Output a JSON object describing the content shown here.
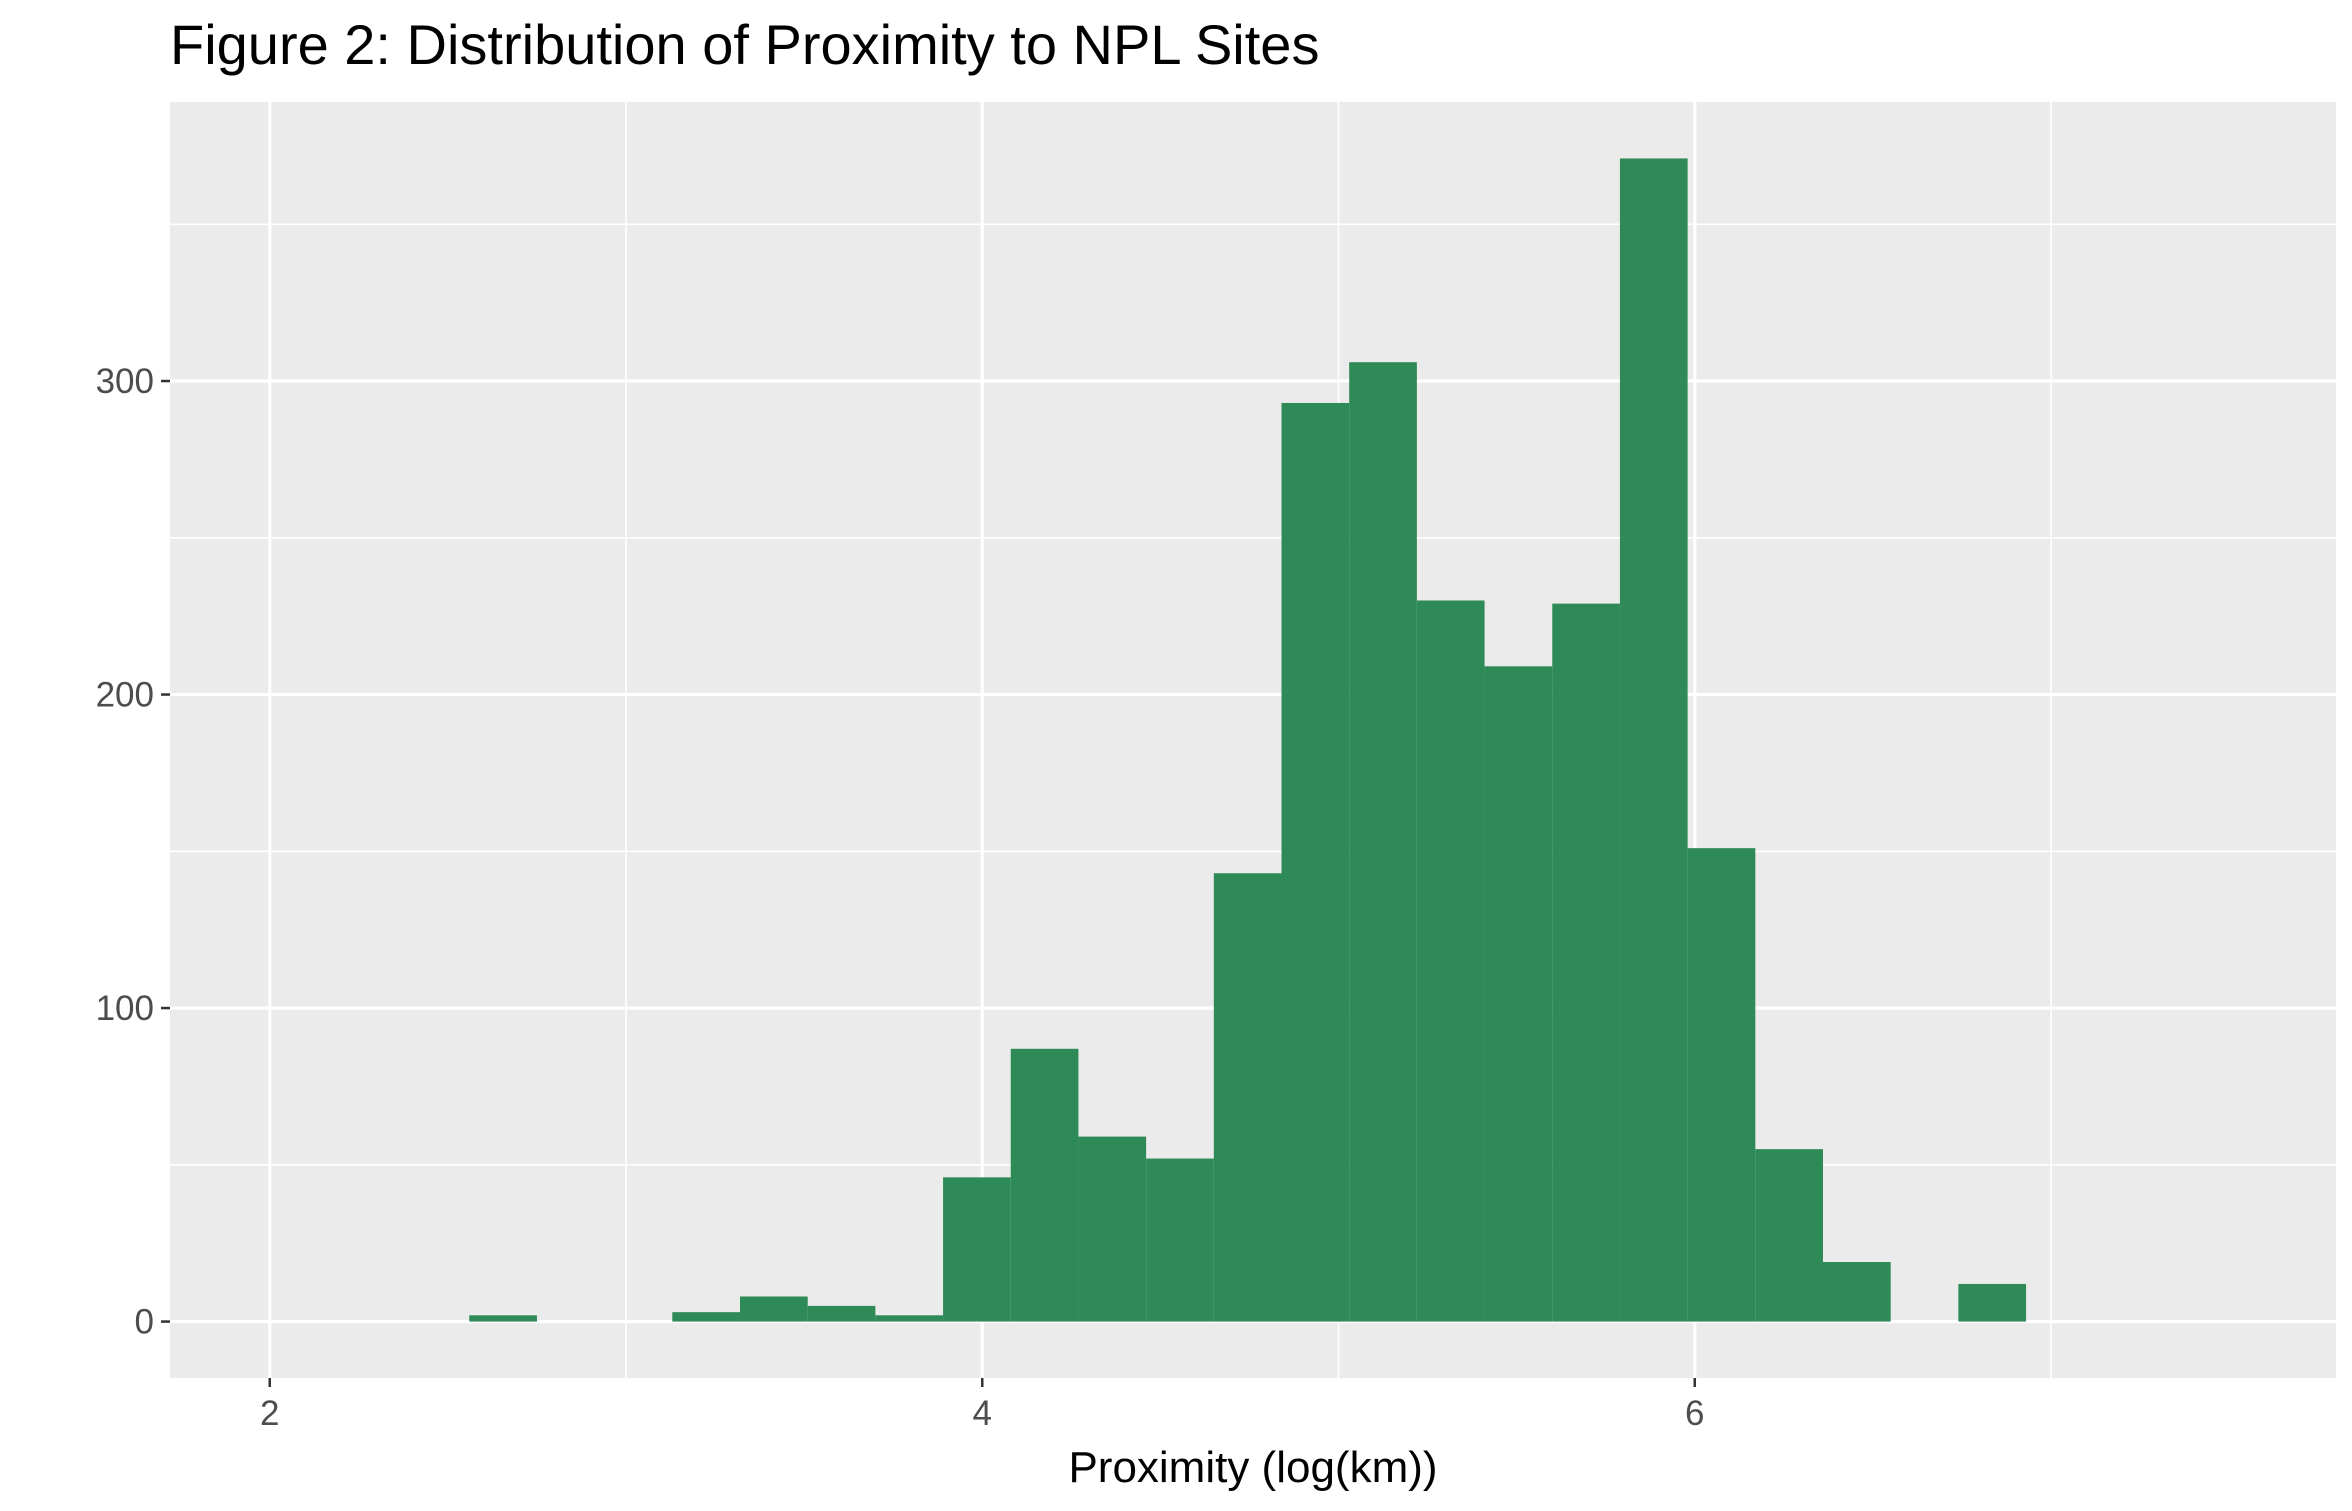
{
  "chart_data": {
    "type": "bar",
    "subtype": "histogram",
    "title": "Figure 2: Distribution of Proximity to NPL Sites",
    "xlabel": "Proximity (log(km))",
    "ylabel": "",
    "xlim": [
      1.72,
      7.8
    ],
    "ylim": [
      -18,
      389
    ],
    "xticks": [
      2,
      4,
      6
    ],
    "xtick_labels": [
      "2",
      "4",
      "6"
    ],
    "yticks": [
      0,
      100,
      200,
      300
    ],
    "ytick_labels": [
      "0",
      "100",
      "200",
      "300"
    ],
    "x_minor_gridlines": [
      3,
      5,
      7
    ],
    "y_minor_gridlines": [
      50,
      150,
      250,
      350
    ],
    "bin_width": 0.19,
    "bins": [
      {
        "x0": 2.56,
        "x1": 2.75,
        "count": 2
      },
      {
        "x0": 3.13,
        "x1": 3.32,
        "count": 3
      },
      {
        "x0": 3.32,
        "x1": 3.51,
        "count": 8
      },
      {
        "x0": 3.51,
        "x1": 3.7,
        "count": 5
      },
      {
        "x0": 3.7,
        "x1": 3.89,
        "count": 2
      },
      {
        "x0": 3.89,
        "x1": 4.08,
        "count": 46
      },
      {
        "x0": 4.08,
        "x1": 4.27,
        "count": 87
      },
      {
        "x0": 4.27,
        "x1": 4.46,
        "count": 59
      },
      {
        "x0": 4.46,
        "x1": 4.65,
        "count": 52
      },
      {
        "x0": 4.65,
        "x1": 4.84,
        "count": 143
      },
      {
        "x0": 4.84,
        "x1": 5.03,
        "count": 293
      },
      {
        "x0": 5.03,
        "x1": 5.22,
        "count": 306
      },
      {
        "x0": 5.22,
        "x1": 5.41,
        "count": 230
      },
      {
        "x0": 5.41,
        "x1": 5.6,
        "count": 209
      },
      {
        "x0": 5.6,
        "x1": 5.79,
        "count": 229
      },
      {
        "x0": 5.79,
        "x1": 5.98,
        "count": 371
      },
      {
        "x0": 5.98,
        "x1": 6.17,
        "count": 151
      },
      {
        "x0": 6.17,
        "x1": 6.36,
        "count": 55
      },
      {
        "x0": 6.36,
        "x1": 6.55,
        "count": 19
      },
      {
        "x0": 6.74,
        "x1": 6.93,
        "count": 12
      }
    ],
    "grid": true,
    "legend": "none",
    "colors": {
      "bar_fill": "#2E8B57",
      "panel_background": "#EBEBEB",
      "gridline": "#FFFFFF",
      "tick_text": "#4D4D4D",
      "title_text": "#000000"
    }
  }
}
